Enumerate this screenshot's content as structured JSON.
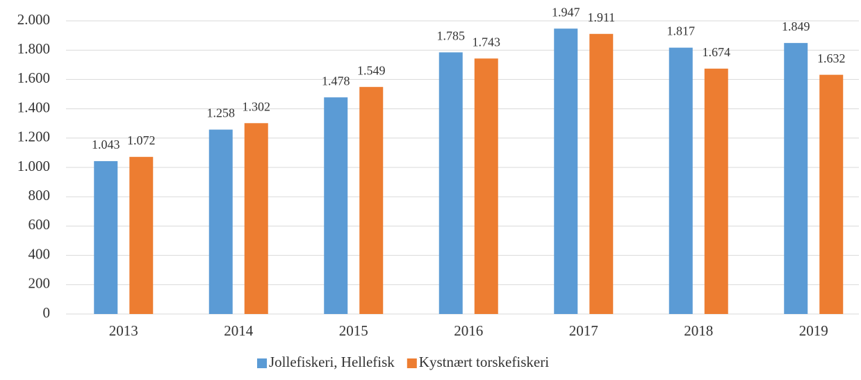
{
  "chart_data": {
    "type": "bar",
    "categories": [
      "2013",
      "2014",
      "2015",
      "2016",
      "2017",
      "2018",
      "2019"
    ],
    "series": [
      {
        "name": "Jollefiskeri, Hellefisk",
        "color": "#5b9bd5",
        "values": [
          1043,
          1258,
          1478,
          1785,
          1947,
          1817,
          1849
        ],
        "value_labels": [
          "1.043",
          "1.258",
          "1.478",
          "1.785",
          "1.947",
          "1.817",
          "1.849"
        ]
      },
      {
        "name": "Kystnært torskefiskeri",
        "color": "#ed7d31",
        "values": [
          1072,
          1302,
          1549,
          1743,
          1911,
          1674,
          1632
        ],
        "value_labels": [
          "1.072",
          "1.302",
          "1.549",
          "1.743",
          "1.911",
          "1.674",
          "1.632"
        ]
      }
    ],
    "ylim": [
      0,
      2000
    ],
    "yticks": [
      0,
      200,
      400,
      600,
      800,
      {
        "value": 1000,
        "label": "1.000"
      },
      {
        "value": 1200,
        "label": "1.200"
      },
      {
        "value": 1400,
        "label": "1.400"
      },
      {
        "value": 1600,
        "label": "1.600"
      },
      {
        "value": 1800,
        "label": "1.800"
      },
      {
        "value": 2000,
        "label": "2.000"
      }
    ],
    "grid": true,
    "legend": "bottom"
  }
}
